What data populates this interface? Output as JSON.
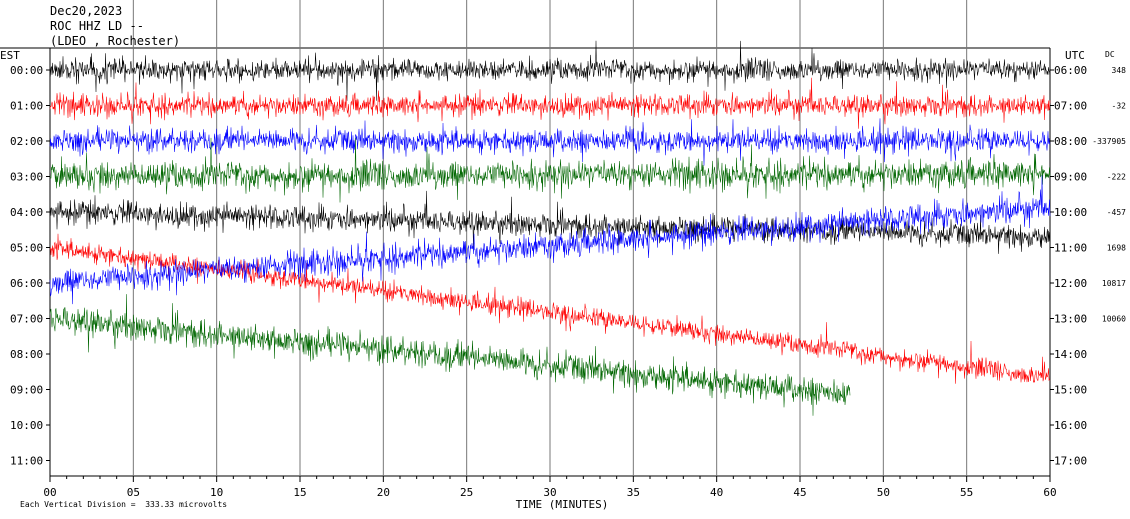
{
  "header": {
    "date": "Dec20,2023",
    "station_line": "ROC HHZ LD --",
    "location_line": "(LDEO , Rochester)"
  },
  "footer": {
    "division_note": "Each Vertical Division =  333.33 microvolts"
  },
  "chart_data": {
    "type": "line",
    "title": "",
    "xlabel": "TIME (MINUTES)",
    "left_axis_label": "EST",
    "right_axis_label": "UTC",
    "dc_label": "DC",
    "xlim": [
      0,
      60
    ],
    "x_ticks": [
      0,
      5,
      10,
      15,
      20,
      25,
      30,
      35,
      40,
      45,
      50,
      55,
      60
    ],
    "x_tick_labels": [
      "00",
      "05",
      "10",
      "15",
      "20",
      "25",
      "30",
      "35",
      "40",
      "45",
      "50",
      "55",
      "60"
    ],
    "grid": "vertical lines every 5 minutes",
    "trace_colors": [
      "#000000",
      "#ff0000",
      "#0000ff",
      "#006600"
    ],
    "rows": [
      {
        "est": "00:00",
        "utc": "06:00",
        "dc": "348",
        "color": "#000000",
        "amplitude": 10,
        "drift": 0,
        "end_minute": 60
      },
      {
        "est": "01:00",
        "utc": "07:00",
        "dc": "-32",
        "color": "#ff0000",
        "amplitude": 10,
        "drift": 0,
        "end_minute": 60
      },
      {
        "est": "02:00",
        "utc": "08:00",
        "dc": "-337905",
        "color": "#0000ff",
        "amplitude": 11,
        "drift": 0,
        "end_minute": 60
      },
      {
        "est": "03:00",
        "utc": "09:00",
        "dc": "-222",
        "color": "#006600",
        "amplitude": 13,
        "drift": -3,
        "end_minute": 60
      },
      {
        "est": "04:00",
        "utc": "10:00",
        "dc": "-457",
        "color": "#000000",
        "amplitude": 11,
        "drift": 25,
        "end_minute": 60
      },
      {
        "est": "05:00",
        "utc": "11:00",
        "dc": "1698",
        "color": "#ff0000",
        "amplitude": 9,
        "drift": 130,
        "end_minute": 60
      },
      {
        "est": "06:00",
        "utc": "12:00",
        "dc": "10817",
        "color": "#0000ff",
        "amplitude": 12,
        "drift": -75,
        "end_minute": 60
      },
      {
        "est": "07:00",
        "utc": "13:00",
        "dc": "10060",
        "color": "#006600",
        "amplitude": 13,
        "drift": 95,
        "end_minute": 48
      }
    ],
    "extra_est_labels": [
      "08:00",
      "09:00",
      "10:00",
      "11:00"
    ],
    "extra_utc_labels": [
      "14:00",
      "15:00",
      "16:00",
      "17:00"
    ]
  }
}
